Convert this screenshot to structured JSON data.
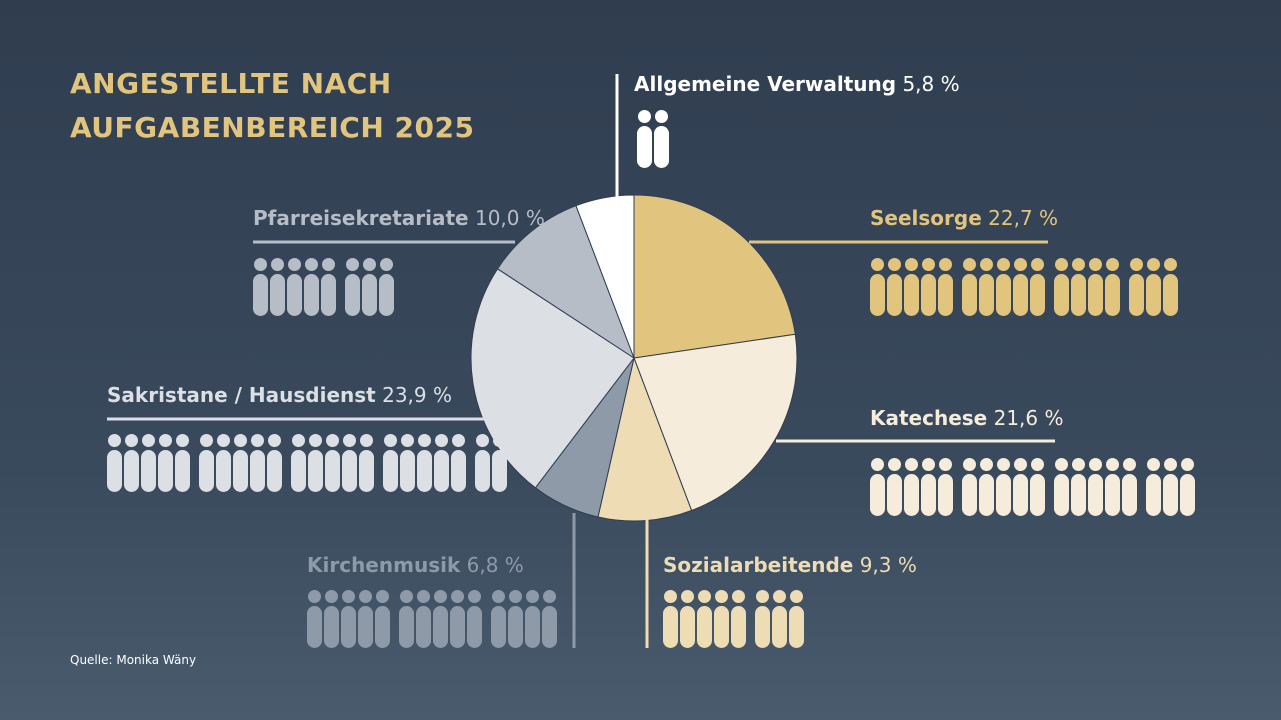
{
  "title_lines": [
    "ANGESTELLTE NACH",
    "AUFGABENBEREICH 2025"
  ],
  "source": "Quelle: Monika Wäny",
  "chart_data": {
    "type": "pie",
    "title": "ANGESTELLTE NACH AUFGABENBEREICH 2025",
    "slices": [
      {
        "name": "Seelsorge",
        "value": 22.7,
        "label": "22,7 %",
        "color": "#e1c57f",
        "icons": [
          5,
          5,
          4,
          3
        ]
      },
      {
        "name": "Katechese",
        "value": 21.6,
        "label": "21,6 %",
        "color": "#f5ecdb",
        "icons": [
          5,
          5,
          5,
          3
        ]
      },
      {
        "name": "Sozialarbeitende",
        "value": 9.3,
        "label": "9,3 %",
        "color": "#eddcb4",
        "icons": [
          5,
          3
        ]
      },
      {
        "name": "Kirchenmusik",
        "value": 6.8,
        "label": "6,8 %",
        "color": "#8e9aa8",
        "icons": [
          5,
          5,
          4
        ]
      },
      {
        "name": "Sakristane / Hausdienst",
        "value": 23.9,
        "label": "23,9 %",
        "color": "#dcdfe4",
        "icons": [
          5,
          5,
          5,
          5,
          2
        ]
      },
      {
        "name": "Pfarreisekretariate",
        "value": 10.0,
        "label": "10,0 %",
        "color": "#b6bdc7",
        "icons": [
          5,
          3
        ]
      },
      {
        "name": "Allgemeine Verwaltung",
        "value": 5.8,
        "label": "5,8 %",
        "color": "#ffffff",
        "icons": [
          2
        ]
      }
    ]
  }
}
